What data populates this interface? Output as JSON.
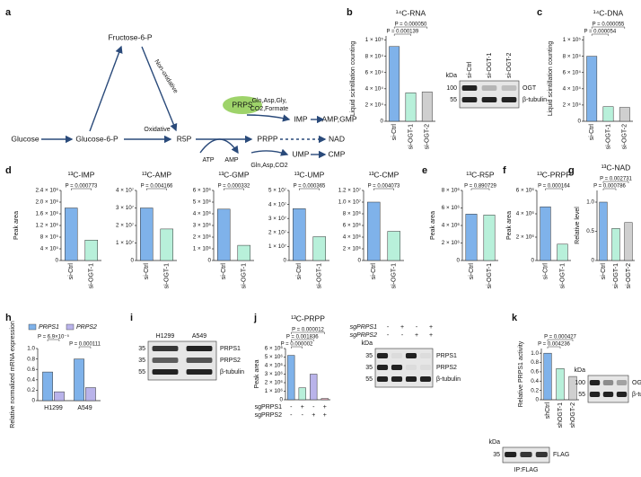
{
  "panel_letters": [
    "a",
    "b",
    "c",
    "d",
    "e",
    "f",
    "g",
    "h",
    "i",
    "j",
    "k"
  ],
  "pathway": {
    "fructose": "Fructose-6-P",
    "glucose": "Glucose",
    "g6p": "Glucose-6-P",
    "oxidative": "Oxidative",
    "non_oxidative": "Non-oxidative",
    "r5p": "R5P",
    "prps": "PRPS",
    "prpp": "PRPP",
    "inputs1": "Gln,Asp,Gly,",
    "inputs2": "CO2,Formate",
    "imp": "IMP",
    "amp_gmp": "AMP,GMP",
    "nad": "NAD",
    "ump": "UMP",
    "cmp": "CMP",
    "atp": "ATP",
    "amp": "AMP",
    "inputs3": "Gln,Asp,CO2"
  },
  "charts": [
    {
      "type": "bar",
      "title": "¹⁴C-RNA",
      "ylabel": "Liquid scintillation counting",
      "categories": [
        "si-Ctrl",
        "si-OGT-1",
        "si-OGT-2"
      ],
      "values": [
        92000,
        35000,
        36000
      ],
      "colors": [
        "#7fb2ea",
        "#b8f0da",
        "#cfcfcf"
      ],
      "ylim": [
        0,
        105000
      ],
      "yticks": [
        0,
        {
          "value": 20000,
          "label": "2 × 10⁴"
        },
        {
          "value": 40000,
          "label": "4 × 10⁴"
        },
        {
          "value": 60000,
          "label": "6 × 10⁴"
        },
        {
          "value": 80000,
          "label": "8 × 10⁴"
        },
        {
          "value": 100000,
          "label": "1 × 10⁵"
        }
      ],
      "pvalues": [
        "P = 0.000050",
        "P = 0.000139"
      ]
    },
    {
      "type": "bar",
      "title": "¹⁴C-DNA",
      "ylabel": "Liquid scintillation counting",
      "categories": [
        "si-Ctrl",
        "si-OGT-1",
        "si-OGT-2"
      ],
      "values": [
        80000,
        18000,
        17000
      ],
      "colors": [
        "#7fb2ea",
        "#b8f0da",
        "#cfcfcf"
      ],
      "ylim": [
        0,
        105000
      ],
      "yticks": [
        0,
        {
          "value": 20000,
          "label": "2 × 10⁴"
        },
        {
          "value": 40000,
          "label": "4 × 10⁴"
        },
        {
          "value": 60000,
          "label": "6 × 10⁴"
        },
        {
          "value": 80000,
          "label": "8 × 10⁴"
        },
        {
          "value": 100000,
          "label": "1 × 10⁵"
        }
      ],
      "pvalues": [
        "P = 0.000055",
        "P = 0.000054"
      ]
    },
    {
      "type": "bar",
      "title": "¹³C-IMP",
      "ylabel": "Peak area",
      "categories": [
        "si-Ctrl",
        "si-OGT-1"
      ],
      "values": [
        1800000,
        700000
      ],
      "colors": [
        "#7fb2ea",
        "#b8f0da"
      ],
      "ylim": [
        0,
        2400000
      ],
      "yticks": [
        0,
        {
          "value": 400000,
          "label": "4 × 10⁵"
        },
        {
          "value": 800000,
          "label": "8 × 10⁵"
        },
        {
          "value": 1200000,
          "label": "1.2 × 10⁶"
        },
        {
          "value": 1600000,
          "label": "1.6 × 10⁶"
        },
        {
          "value": 2000000,
          "label": "2.0 × 10⁶"
        },
        {
          "value": 2400000,
          "label": "2.4 × 10⁶"
        }
      ],
      "pvalues": [
        "P = 0.000773"
      ]
    },
    {
      "type": "bar",
      "title": "¹³C-AMP",
      "categories": [
        "si-Ctrl",
        "si-OGT-1"
      ],
      "values": [
        30000000,
        18000000
      ],
      "colors": [
        "#7fb2ea",
        "#b8f0da"
      ],
      "ylim": [
        0,
        40000000
      ],
      "yticks": [
        0,
        {
          "value": 10000000,
          "label": "1 × 10⁷"
        },
        {
          "value": 20000000,
          "label": "2 × 10⁷"
        },
        {
          "value": 30000000,
          "label": "3 × 10⁷"
        },
        {
          "value": 40000000,
          "label": "4 × 10⁷"
        }
      ],
      "pvalues": [
        "P = 0.004166"
      ]
    },
    {
      "type": "bar",
      "title": "¹³C-GMP",
      "categories": [
        "si-Ctrl",
        "si-OGT-1"
      ],
      "values": [
        4400000,
        1300000
      ],
      "colors": [
        "#7fb2ea",
        "#b8f0da"
      ],
      "ylim": [
        0,
        6000000
      ],
      "yticks": [
        0,
        {
          "value": 1000000,
          "label": "1 × 10⁶"
        },
        {
          "value": 2000000,
          "label": "2 × 10⁶"
        },
        {
          "value": 3000000,
          "label": "3 × 10⁶"
        },
        {
          "value": 4000000,
          "label": "4 × 10⁶"
        },
        {
          "value": 5000000,
          "label": "5 × 10⁶"
        },
        {
          "value": 6000000,
          "label": "6 × 10⁶"
        }
      ],
      "pvalues": [
        "P = 0.000332"
      ]
    },
    {
      "type": "bar",
      "title": "¹³C-UMP",
      "categories": [
        "si-Ctrl",
        "si-OGT-1"
      ],
      "values": [
        37000000,
        17000000
      ],
      "colors": [
        "#7fb2ea",
        "#b8f0da"
      ],
      "ylim": [
        0,
        50000000
      ],
      "yticks": [
        0,
        {
          "value": 10000000,
          "label": "1 × 10⁷"
        },
        {
          "value": 20000000,
          "label": "2 × 10⁷"
        },
        {
          "value": 30000000,
          "label": "3 × 10⁷"
        },
        {
          "value": 40000000,
          "label": "4 × 10⁷"
        },
        {
          "value": 50000000,
          "label": "5 × 10⁷"
        }
      ],
      "pvalues": [
        "P = 0.000365"
      ]
    },
    {
      "type": "bar",
      "title": "¹³C-CMP",
      "categories": [
        "si-Ctrl",
        "si-OGT-1"
      ],
      "values": [
        10000000,
        5000000
      ],
      "colors": [
        "#7fb2ea",
        "#b8f0da"
      ],
      "ylim": [
        0,
        12000000
      ],
      "yticks": [
        0,
        {
          "value": 2000000,
          "label": "2 × 10⁶"
        },
        {
          "value": 4000000,
          "label": "4 × 10⁶"
        },
        {
          "value": 6000000,
          "label": "6 × 10⁶"
        },
        {
          "value": 8000000,
          "label": "8 × 10⁶"
        },
        {
          "value": 10000000,
          "label": "1.0 × 10⁷"
        },
        {
          "value": 12000000,
          "label": "1.2 × 10⁷"
        }
      ],
      "pvalues": [
        "P = 0.004073"
      ]
    },
    {
      "type": "bar",
      "title": "¹³C-R5P",
      "ylabel": "Peak area",
      "categories": [
        "si-Ctrl",
        "si-OGT-1"
      ],
      "values": [
        5300000,
        5200000
      ],
      "colors": [
        "#7fb2ea",
        "#b8f0da"
      ],
      "ylim": [
        0,
        8000000
      ],
      "yticks": [
        0,
        {
          "value": 2000000,
          "label": "2 × 10⁶"
        },
        {
          "value": 4000000,
          "label": "4 × 10⁶"
        },
        {
          "value": 6000000,
          "label": "6 × 10⁶"
        },
        {
          "value": 8000000,
          "label": "8 × 10⁶"
        }
      ],
      "pvalues": [
        "P = 0.890729"
      ]
    },
    {
      "type": "bar",
      "title": "¹³C-PRPP",
      "ylabel": "Peak area",
      "categories": [
        "si-Ctrl",
        "si-OGT-1"
      ],
      "values": [
        4600000,
        1400000
      ],
      "colors": [
        "#7fb2ea",
        "#b8f0da"
      ],
      "ylim": [
        0,
        6000000
      ],
      "yticks": [
        0,
        {
          "value": 2000000,
          "label": "2 × 10⁶"
        },
        {
          "value": 4000000,
          "label": "4 × 10⁶"
        },
        {
          "value": 6000000,
          "label": "6 × 10⁶"
        }
      ],
      "pvalues": [
        "P = 0.000164"
      ]
    },
    {
      "type": "bar",
      "title": "¹³C-NAD",
      "ylabel": "Relative level",
      "categories": [
        "si-Ctrl",
        "si-OGT-1",
        "si-OGT-2"
      ],
      "values": [
        1.0,
        0.55,
        0.65
      ],
      "colors": [
        "#7fb2ea",
        "#b8f0da",
        "#cfcfcf"
      ],
      "ylim": [
        0,
        1.2
      ],
      "yticks": [
        0,
        0.5,
        {
          "value": 1,
          "label": "1.0"
        }
      ],
      "pvalues": [
        "P = 0.002731",
        "P = 0.000786"
      ]
    },
    {
      "type": "bar",
      "ylabel": "Relative normalized mRNA expression",
      "categories": [
        "H1299",
        "A549"
      ],
      "series": [
        {
          "name": "PRPS1",
          "color": "#7fb2ea",
          "values": [
            0.55,
            0.8
          ]
        },
        {
          "name": "PRPS2",
          "color": "#b9b3ea",
          "values": [
            0.17,
            0.25
          ]
        }
      ],
      "ylim": [
        0,
        1.0
      ],
      "yticks": [
        0,
        0.2,
        0.4,
        0.6,
        0.8,
        {
          "value": 1,
          "label": "1.0"
        }
      ],
      "pvalues": [
        "P = 6.9×10⁻⁵",
        "P = 0.000111"
      ]
    },
    {
      "type": "bar",
      "title": "¹³C-PRPP",
      "ylabel": "Peak area",
      "rows": [
        {
          "label": "sgPRPS1",
          "signs": [
            "-",
            "+",
            "-",
            "+"
          ]
        },
        {
          "label": "sgPRPS2",
          "signs": [
            "-",
            "-",
            "+",
            "+"
          ]
        }
      ],
      "values": [
        5200000,
        1400000,
        3000000,
        150000
      ],
      "colors": [
        "#7fb2ea",
        "#b8f0da",
        "#b9b3ea",
        "#f2b8c8"
      ],
      "ylim": [
        0,
        6000000
      ],
      "yticks": [
        0,
        {
          "value": 1000000,
          "label": "1 × 10⁶"
        },
        {
          "value": 2000000,
          "label": "2 × 10⁶"
        },
        {
          "value": 3000000,
          "label": "3 × 10⁶"
        },
        {
          "value": 4000000,
          "label": "4 × 10⁶"
        },
        {
          "value": 5000000,
          "label": "5 × 10⁶"
        },
        {
          "value": 6000000,
          "label": "6 × 10⁶"
        }
      ],
      "pvalues": [
        "P = 0.000012",
        "P = 0.001836",
        "P = 0.000002"
      ]
    },
    {
      "type": "bar",
      "ylabel": "Relative PRPS1 activity",
      "categories": [
        "shCtrl",
        "shOGT-1",
        "shOGT-2"
      ],
      "values": [
        1.0,
        0.67,
        0.5
      ],
      "colors": [
        "#7fb2ea",
        "#b8f0da",
        "#cfcfcf"
      ],
      "ylim": [
        0,
        1.1
      ],
      "yticks": [
        0,
        0.2,
        0.4,
        0.6,
        0.8,
        {
          "value": 1,
          "label": "1.0"
        }
      ],
      "pvalues": [
        "P = 0.000427",
        "P = 0.004236"
      ]
    }
  ],
  "blots": [
    {
      "kda": "kDa",
      "lanes": [
        "si-Ctrl",
        "si-OGT-1",
        "si-OGT-2"
      ],
      "markers": [
        "100",
        "55"
      ],
      "proteins": [
        "OGT",
        "β-tubulin"
      ]
    },
    {
      "lanes": [
        "H1299",
        "A549"
      ],
      "markers": [
        "35",
        "35",
        "55"
      ],
      "proteins": [
        "PRPS1",
        "PRPS2",
        "β-tubulin"
      ]
    },
    {
      "kda": "kDa",
      "rows": [
        {
          "label": "sgPRPS1",
          "signs": [
            "-",
            "+",
            "-",
            "+"
          ]
        },
        {
          "label": "sgPRPS2",
          "signs": [
            "-",
            "-",
            "+",
            "+"
          ]
        }
      ],
      "markers": [
        "35",
        "35",
        "55"
      ],
      "proteins": [
        "PRPS1",
        "PRPS2",
        "β-tubulin"
      ]
    },
    {
      "kda": "kDa",
      "markers": [
        "100",
        "55"
      ],
      "proteins": [
        "OGT",
        "β-tubulin"
      ]
    },
    {
      "kda": "kDa",
      "markers": [
        "35"
      ],
      "proteins": [
        "FLAG"
      ],
      "caption": "IP:FLAG"
    }
  ]
}
